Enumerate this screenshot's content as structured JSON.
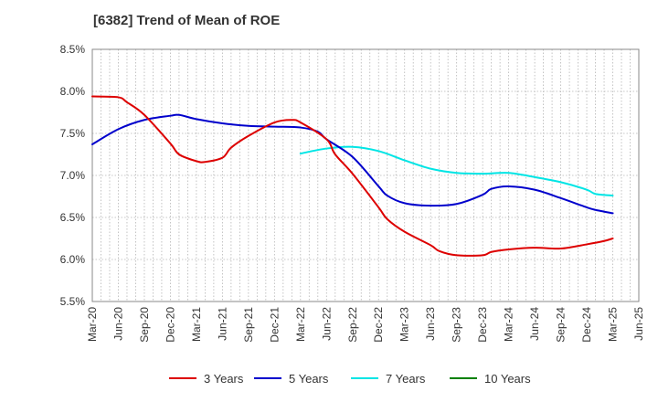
{
  "chart_data": {
    "type": "line",
    "title": "[6382]  Trend of Mean of ROE",
    "xlabel": "",
    "ylabel": "",
    "ylim": [
      5.5,
      8.5
    ],
    "y_ticks": [
      8.5,
      8.0,
      7.5,
      7.0,
      6.5,
      6.0,
      5.5
    ],
    "y_tick_labels": [
      "8.5%",
      "8.0%",
      "7.5%",
      "7.0%",
      "6.5%",
      "6.0%",
      "5.5%"
    ],
    "x_tick_labels": [
      "Mar-20",
      "Jun-20",
      "Sep-20",
      "Dec-20",
      "Mar-21",
      "Jun-21",
      "Sep-21",
      "Dec-21",
      "Mar-22",
      "Jun-22",
      "Sep-22",
      "Dec-22",
      "Mar-23",
      "Jun-23",
      "Sep-23",
      "Dec-23",
      "Mar-24",
      "Jun-24",
      "Sep-24",
      "Dec-24",
      "Mar-25",
      "Jun-25"
    ],
    "grid": true,
    "legend_position": "bottom",
    "series": [
      {
        "name": "3 Years",
        "color": "#dd0000",
        "points": [
          {
            "x": "Mar-20",
            "y": 7.94
          },
          {
            "x": "Jun-20",
            "y": 7.93
          },
          {
            "x": "Jul-20",
            "y": 7.87
          },
          {
            "x": "Sep-20",
            "y": 7.72
          },
          {
            "x": "Dec-20",
            "y": 7.38
          },
          {
            "x": "Jan-21",
            "y": 7.25
          },
          {
            "x": "Mar-21",
            "y": 7.17
          },
          {
            "x": "Apr-21",
            "y": 7.16
          },
          {
            "x": "Jun-21",
            "y": 7.21
          },
          {
            "x": "Jul-21",
            "y": 7.33
          },
          {
            "x": "Sep-21",
            "y": 7.47
          },
          {
            "x": "Dec-21",
            "y": 7.63
          },
          {
            "x": "Feb-22",
            "y": 7.66
          },
          {
            "x": "Mar-22",
            "y": 7.63
          },
          {
            "x": "Jun-22",
            "y": 7.43
          },
          {
            "x": "Jul-22",
            "y": 7.25
          },
          {
            "x": "Sep-22",
            "y": 7.02
          },
          {
            "x": "Dec-22",
            "y": 6.62
          },
          {
            "x": "Jan-23",
            "y": 6.48
          },
          {
            "x": "Mar-23",
            "y": 6.33
          },
          {
            "x": "Jun-23",
            "y": 6.17
          },
          {
            "x": "Jul-23",
            "y": 6.1
          },
          {
            "x": "Sep-23",
            "y": 6.05
          },
          {
            "x": "Dec-23",
            "y": 6.05
          },
          {
            "x": "Jan-24",
            "y": 6.09
          },
          {
            "x": "Mar-24",
            "y": 6.12
          },
          {
            "x": "Jun-24",
            "y": 6.14
          },
          {
            "x": "Sep-24",
            "y": 6.13
          },
          {
            "x": "Dec-24",
            "y": 6.18
          },
          {
            "x": "Feb-25",
            "y": 6.22
          },
          {
            "x": "Mar-25",
            "y": 6.25
          }
        ]
      },
      {
        "name": "5 Years",
        "color": "#0000cc",
        "points": [
          {
            "x": "Mar-20",
            "y": 7.37
          },
          {
            "x": "Jun-20",
            "y": 7.55
          },
          {
            "x": "Sep-20",
            "y": 7.66
          },
          {
            "x": "Dec-20",
            "y": 7.71
          },
          {
            "x": "Jan-21",
            "y": 7.72
          },
          {
            "x": "Mar-21",
            "y": 7.67
          },
          {
            "x": "Jun-21",
            "y": 7.62
          },
          {
            "x": "Sep-21",
            "y": 7.59
          },
          {
            "x": "Dec-21",
            "y": 7.58
          },
          {
            "x": "Mar-22",
            "y": 7.57
          },
          {
            "x": "May-22",
            "y": 7.52
          },
          {
            "x": "Jun-22",
            "y": 7.43
          },
          {
            "x": "Sep-22",
            "y": 7.22
          },
          {
            "x": "Dec-22",
            "y": 6.87
          },
          {
            "x": "Jan-23",
            "y": 6.76
          },
          {
            "x": "Mar-23",
            "y": 6.67
          },
          {
            "x": "Jun-23",
            "y": 6.64
          },
          {
            "x": "Sep-23",
            "y": 6.66
          },
          {
            "x": "Dec-23",
            "y": 6.77
          },
          {
            "x": "Jan-24",
            "y": 6.84
          },
          {
            "x": "Mar-24",
            "y": 6.87
          },
          {
            "x": "Jun-24",
            "y": 6.83
          },
          {
            "x": "Sep-24",
            "y": 6.73
          },
          {
            "x": "Dec-24",
            "y": 6.62
          },
          {
            "x": "Jan-25",
            "y": 6.59
          },
          {
            "x": "Mar-25",
            "y": 6.55
          }
        ]
      },
      {
        "name": "7 Years",
        "color": "#00e5e5",
        "points": [
          {
            "x": "Mar-22",
            "y": 7.26
          },
          {
            "x": "Jun-22",
            "y": 7.32
          },
          {
            "x": "Sep-22",
            "y": 7.34
          },
          {
            "x": "Dec-22",
            "y": 7.29
          },
          {
            "x": "Mar-23",
            "y": 7.18
          },
          {
            "x": "Jun-23",
            "y": 7.08
          },
          {
            "x": "Sep-23",
            "y": 7.03
          },
          {
            "x": "Dec-23",
            "y": 7.02
          },
          {
            "x": "Mar-24",
            "y": 7.03
          },
          {
            "x": "Jun-24",
            "y": 6.98
          },
          {
            "x": "Sep-24",
            "y": 6.92
          },
          {
            "x": "Dec-24",
            "y": 6.83
          },
          {
            "x": "Jan-25",
            "y": 6.78
          },
          {
            "x": "Mar-25",
            "y": 6.76
          }
        ]
      },
      {
        "name": "10 Years",
        "color": "#008000",
        "points": []
      }
    ]
  }
}
